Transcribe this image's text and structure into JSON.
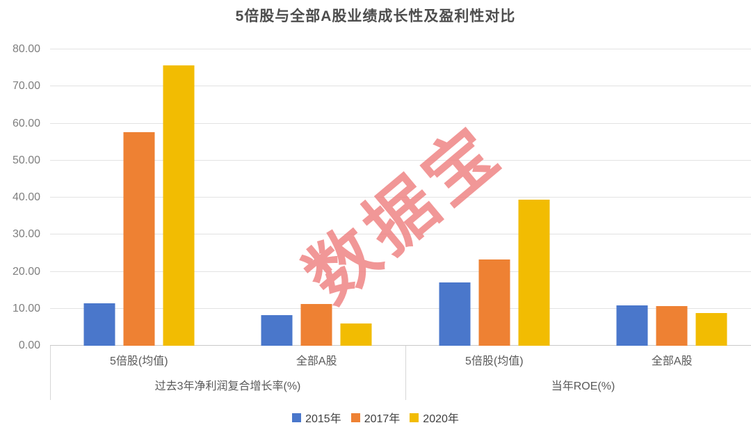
{
  "chart_data": {
    "type": "bar",
    "title": "5倍股与全部A股业绩成长性及盈利性对比",
    "xlabel": "",
    "ylabel": "",
    "ylim": [
      0,
      80
    ],
    "ytick_step": 10,
    "ytick_decimals": 2,
    "grid": true,
    "legend_position": "bottom",
    "groups": [
      {
        "label": "过去3年净利润复合增长率(%)",
        "categories": [
          "5倍股(均值)",
          "全部A股"
        ]
      },
      {
        "label": "当年ROE(%)",
        "categories": [
          "5倍股(均值)",
          "全部A股"
        ]
      }
    ],
    "series": [
      {
        "name": "2015年",
        "color": "#4A77CB",
        "values": [
          11.5,
          8.2,
          17.1,
          10.9
        ]
      },
      {
        "name": "2017年",
        "color": "#EE8133",
        "values": [
          57.7,
          11.2,
          23.3,
          10.8
        ]
      },
      {
        "name": "2020年",
        "color": "#F2BC02",
        "values": [
          75.7,
          6.0,
          39.4,
          8.9
        ]
      }
    ],
    "watermark": {
      "text": "数据宝",
      "color": "#EE7E7E"
    }
  }
}
